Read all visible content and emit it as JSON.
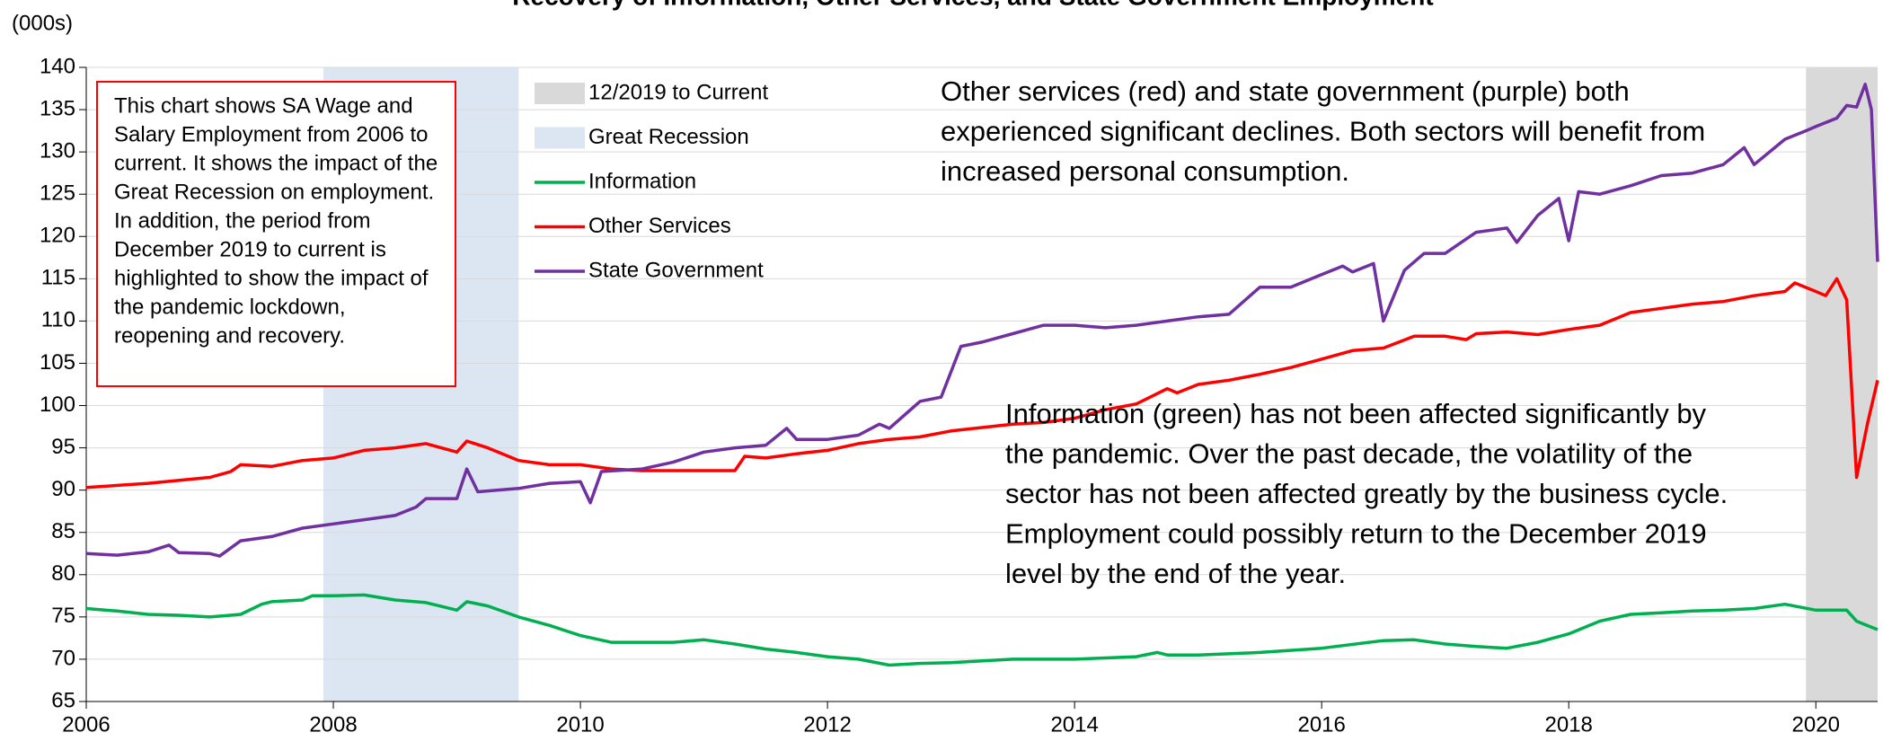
{
  "chart_data": {
    "type": "line",
    "title": "Recovery of Information, Other Services, and State Government Employment",
    "ylabel": "(000s)",
    "xlim": [
      2006,
      2020.5
    ],
    "xticks": [
      2006,
      2008,
      2010,
      2012,
      2014,
      2016,
      2018,
      2020
    ],
    "ylim": [
      65,
      140
    ],
    "yticks": [
      65,
      70,
      75,
      80,
      85,
      90,
      95,
      100,
      105,
      110,
      115,
      120,
      125,
      130,
      135,
      140
    ],
    "grid": true,
    "shaded": [
      {
        "label": "12/2019 to Current",
        "start": 2019.92,
        "end": 2020.5,
        "color": "#d9d9d9"
      },
      {
        "label": "Great Recession",
        "start": 2007.92,
        "end": 2009.5,
        "color": "#dce6f2"
      }
    ],
    "series": [
      {
        "name": "Information",
        "color": "#00b050",
        "x": [
          2006,
          2006.25,
          2006.5,
          2006.75,
          2007,
          2007.25,
          2007.42,
          2007.5,
          2007.75,
          2007.83,
          2008,
          2008.25,
          2008.5,
          2008.75,
          2009,
          2009.08,
          2009.25,
          2009.5,
          2009.75,
          2010,
          2010.25,
          2010.5,
          2010.75,
          2011,
          2011.25,
          2011.5,
          2011.75,
          2012,
          2012.25,
          2012.5,
          2012.75,
          2013,
          2013.5,
          2014,
          2014.5,
          2014.67,
          2014.75,
          2015,
          2015.5,
          2016,
          2016.5,
          2016.75,
          2017,
          2017.25,
          2017.5,
          2017.75,
          2018,
          2018.25,
          2018.5,
          2018.75,
          2019,
          2019.25,
          2019.5,
          2019.75,
          2020,
          2020.25,
          2020.33,
          2020.5
        ],
        "values": [
          76.0,
          75.7,
          75.3,
          75.2,
          75.0,
          75.3,
          76.5,
          76.8,
          77.0,
          77.5,
          77.5,
          77.6,
          77.0,
          76.7,
          75.8,
          76.8,
          76.3,
          75.0,
          74.0,
          72.8,
          72.0,
          72.0,
          72.0,
          72.3,
          71.8,
          71.2,
          70.8,
          70.3,
          70.0,
          69.3,
          69.5,
          69.6,
          70.0,
          70.0,
          70.3,
          70.8,
          70.5,
          70.5,
          70.8,
          71.3,
          72.2,
          72.3,
          71.8,
          71.5,
          71.3,
          72.0,
          73.0,
          74.5,
          75.3,
          75.5,
          75.7,
          75.8,
          76.0,
          76.5,
          75.8,
          75.8,
          74.5,
          73.5
        ]
      },
      {
        "name": "Other Services",
        "color": "#ff0000",
        "x": [
          2006,
          2006.5,
          2007,
          2007.17,
          2007.25,
          2007.5,
          2007.75,
          2008,
          2008.25,
          2008.5,
          2008.75,
          2009,
          2009.08,
          2009.25,
          2009.5,
          2009.75,
          2010,
          2010.25,
          2010.5,
          2011,
          2011.25,
          2011.33,
          2011.5,
          2011.75,
          2012,
          2012.25,
          2012.5,
          2012.75,
          2013,
          2013.5,
          2013.75,
          2014,
          2014.25,
          2014.5,
          2014.75,
          2014.83,
          2015,
          2015.25,
          2015.5,
          2015.75,
          2016,
          2016.25,
          2016.5,
          2016.75,
          2017,
          2017.17,
          2017.25,
          2017.5,
          2017.75,
          2018,
          2018.25,
          2018.5,
          2018.75,
          2019,
          2019.25,
          2019.5,
          2019.75,
          2019.83,
          2020,
          2020.08,
          2020.17,
          2020.25,
          2020.33,
          2020.42,
          2020.5
        ],
        "values": [
          90.3,
          90.8,
          91.5,
          92.2,
          93.0,
          92.8,
          93.5,
          93.8,
          94.7,
          95.0,
          95.5,
          94.5,
          95.8,
          95.0,
          93.5,
          93.0,
          93.0,
          92.5,
          92.3,
          92.3,
          92.3,
          94.0,
          93.8,
          94.3,
          94.7,
          95.5,
          96.0,
          96.3,
          97.0,
          97.8,
          98.0,
          98.5,
          99.5,
          100.2,
          102.0,
          101.5,
          102.5,
          103.0,
          103.7,
          104.5,
          105.5,
          106.5,
          106.8,
          108.2,
          108.2,
          107.8,
          108.5,
          108.7,
          108.4,
          109.0,
          109.5,
          111.0,
          111.5,
          112.0,
          112.3,
          113.0,
          113.5,
          114.5,
          113.5,
          113.0,
          115.0,
          112.5,
          91.5,
          98.0,
          103.0
        ]
      },
      {
        "name": "State Government",
        "color": "#7030a0",
        "x": [
          2006,
          2006.25,
          2006.5,
          2006.67,
          2006.75,
          2007,
          2007.08,
          2007.25,
          2007.5,
          2007.75,
          2008,
          2008.25,
          2008.5,
          2008.67,
          2008.75,
          2009,
          2009.08,
          2009.17,
          2009.5,
          2009.75,
          2010,
          2010.08,
          2010.17,
          2010.5,
          2010.75,
          2011,
          2011.25,
          2011.5,
          2011.67,
          2011.75,
          2012,
          2012.25,
          2012.42,
          2012.5,
          2012.75,
          2012.92,
          2013.08,
          2013.25,
          2013.5,
          2013.75,
          2014,
          2014.25,
          2014.5,
          2014.75,
          2015,
          2015.25,
          2015.5,
          2015.75,
          2016,
          2016.17,
          2016.25,
          2016.42,
          2016.5,
          2016.67,
          2016.83,
          2017,
          2017.25,
          2017.5,
          2017.58,
          2017.75,
          2017.92,
          2018,
          2018.08,
          2018.25,
          2018.5,
          2018.75,
          2019,
          2019.25,
          2019.42,
          2019.5,
          2019.75,
          2019.92,
          2020,
          2020.17,
          2020.25,
          2020.33,
          2020.4,
          2020.45,
          2020.5
        ],
        "values": [
          82.5,
          82.3,
          82.7,
          83.5,
          82.6,
          82.5,
          82.2,
          84.0,
          84.5,
          85.5,
          86.0,
          86.5,
          87.0,
          88.0,
          89.0,
          89.0,
          92.5,
          89.8,
          90.2,
          90.8,
          91.0,
          88.5,
          92.2,
          92.5,
          93.3,
          94.5,
          95.0,
          95.3,
          97.3,
          96.0,
          96.0,
          96.5,
          97.8,
          97.3,
          100.5,
          101.0,
          107.0,
          107.5,
          108.5,
          109.5,
          109.5,
          109.2,
          109.5,
          110.0,
          110.5,
          110.8,
          114.0,
          114.0,
          115.5,
          116.5,
          115.8,
          116.8,
          110.0,
          116.0,
          118.0,
          118.0,
          120.5,
          121.0,
          119.3,
          122.5,
          124.5,
          119.5,
          125.3,
          125.0,
          126.0,
          127.2,
          127.5,
          128.5,
          130.5,
          128.5,
          131.5,
          132.5,
          133.0,
          134.0,
          135.5,
          135.3,
          138.0,
          135.0,
          117.0
        ]
      }
    ],
    "annotations": [
      {
        "lines": [
          "This chart shows SA Wage and",
          "Salary Employment from 2006 to",
          "current. It shows the impact of the",
          "Great Recession on employment.",
          "In addition, the period from",
          "December 2019 to current is",
          "highlighted to show the impact of",
          "the pandemic lockdown,",
          "reopening and recovery."
        ]
      },
      {
        "lines": [
          "Other services (red) and state government (purple) both",
          "experienced significant declines. Both sectors will benefit from",
          "increased personal consumption."
        ]
      },
      {
        "lines": [
          "Information (green) has not been affected significantly by",
          "the pandemic. Over the past decade, the volatility of the",
          "sector has not been affected greatly by the business cycle.",
          "Employment could possibly return to the December 2019",
          "level by the end of the year."
        ]
      }
    ]
  }
}
